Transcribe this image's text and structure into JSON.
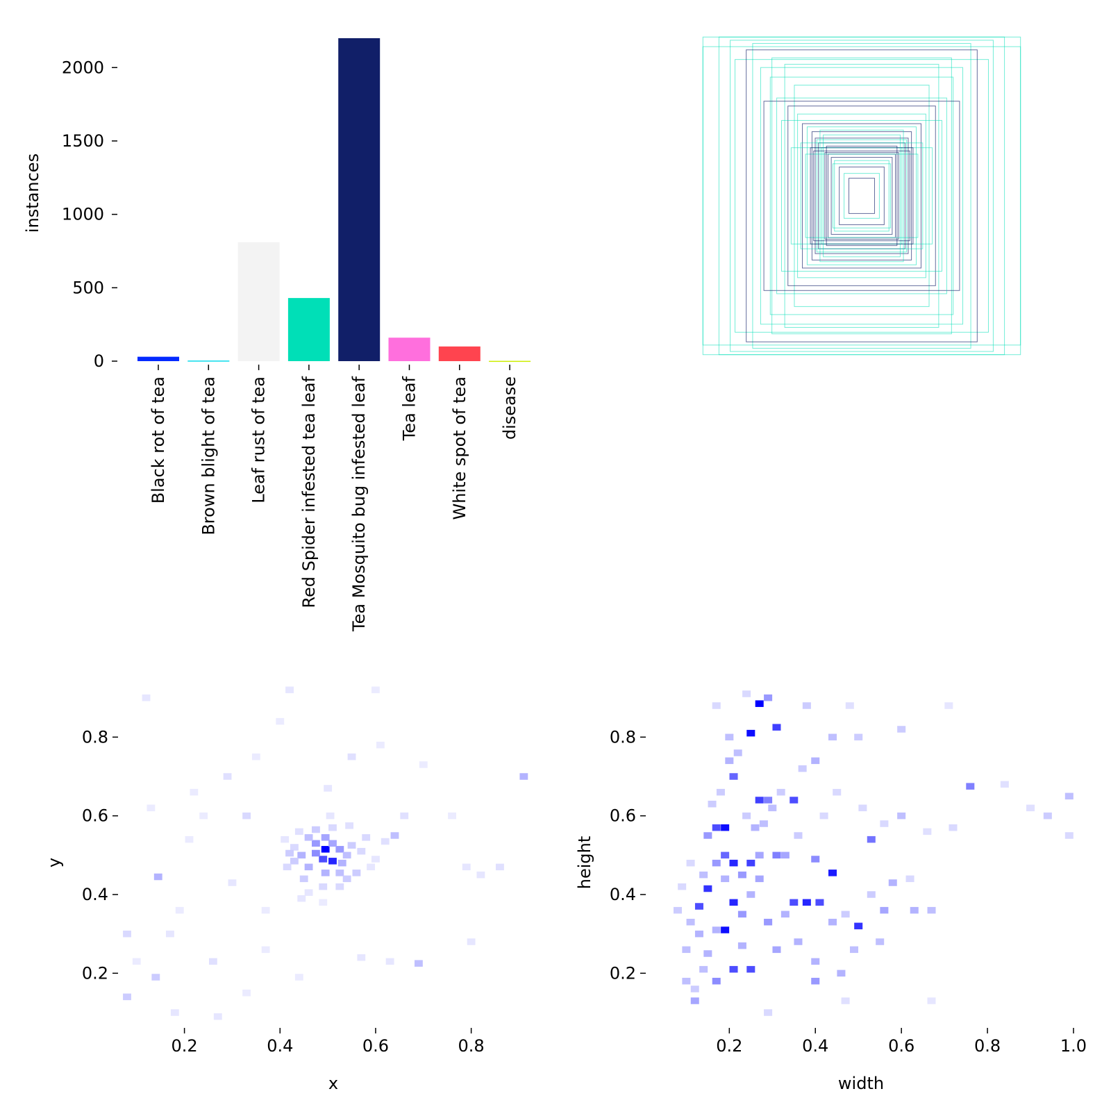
{
  "chart_data": [
    {
      "id": "class-instances",
      "type": "bar",
      "title": "",
      "xlabel": "",
      "ylabel": "instances",
      "ylim": [
        0,
        2200
      ],
      "yticks": [
        0,
        500,
        1000,
        1500,
        2000
      ],
      "categories": [
        "Black rot of tea",
        "Brown blight of tea",
        "Leaf rust of tea",
        "Red Spider infested tea leaf",
        "Tea Mosquito bug infested leaf",
        "Tea leaf",
        "White spot of tea",
        "disease"
      ],
      "values": [
        30,
        4,
        810,
        430,
        2200,
        160,
        100,
        2
      ],
      "colors": [
        "#042aff",
        "#0bdbeb",
        "#f3f3f3",
        "#00dfb7",
        "#111f68",
        "#ff6fdd",
        "#ff444f",
        "#cced00"
      ]
    },
    {
      "id": "box-overlay",
      "type": "box-overlay",
      "title": "",
      "xlim": [
        0,
        1
      ],
      "ylim": [
        0,
        1
      ],
      "boxes": [
        {
          "w": 0.99,
          "h": 0.99,
          "c": 1
        },
        {
          "w": 0.89,
          "h": 0.99,
          "c": 1
        },
        {
          "w": 0.99,
          "h": 0.93,
          "c": 1
        },
        {
          "w": 0.82,
          "h": 0.97,
          "c": 1
        },
        {
          "w": 0.68,
          "h": 0.95,
          "c": 1
        },
        {
          "w": 0.79,
          "h": 0.85,
          "c": 1
        },
        {
          "w": 0.72,
          "h": 0.91,
          "c": 0
        },
        {
          "w": 0.56,
          "h": 0.86,
          "c": 1
        },
        {
          "w": 0.63,
          "h": 0.8,
          "c": 1
        },
        {
          "w": 0.48,
          "h": 0.82,
          "c": 1
        },
        {
          "w": 0.42,
          "h": 0.69,
          "c": 1
        },
        {
          "w": 0.57,
          "h": 0.74,
          "c": 1
        },
        {
          "w": 0.61,
          "h": 0.59,
          "c": 0
        },
        {
          "w": 0.53,
          "h": 0.61,
          "c": 1
        },
        {
          "w": 0.46,
          "h": 0.56,
          "c": 0
        },
        {
          "w": 0.4,
          "h": 0.51,
          "c": 1
        },
        {
          "w": 0.37,
          "h": 0.45,
          "c": 0
        },
        {
          "w": 0.34,
          "h": 0.43,
          "c": 1
        },
        {
          "w": 0.31,
          "h": 0.4,
          "c": 0
        },
        {
          "w": 0.44,
          "h": 0.3,
          "c": 1
        },
        {
          "w": 0.29,
          "h": 0.36,
          "c": 0
        },
        {
          "w": 0.27,
          "h": 0.33,
          "c": 0
        },
        {
          "w": 0.25,
          "h": 0.3,
          "c": 1
        },
        {
          "w": 0.23,
          "h": 0.27,
          "c": 0
        },
        {
          "w": 0.21,
          "h": 0.26,
          "c": 0
        },
        {
          "w": 0.19,
          "h": 0.24,
          "c": 0
        },
        {
          "w": 0.17,
          "h": 0.22,
          "c": 1
        },
        {
          "w": 0.14,
          "h": 0.18,
          "c": 0
        },
        {
          "w": 0.11,
          "h": 0.14,
          "c": 1
        },
        {
          "w": 0.08,
          "h": 0.11,
          "c": 0
        },
        {
          "w": 0.35,
          "h": 0.26,
          "c": 1
        },
        {
          "w": 0.28,
          "h": 0.35,
          "c": 1
        },
        {
          "w": 0.32,
          "h": 0.3,
          "c": 0
        },
        {
          "w": 0.24,
          "h": 0.38,
          "c": 1
        },
        {
          "w": 0.38,
          "h": 0.33,
          "c": 1
        },
        {
          "w": 0.3,
          "h": 0.28,
          "c": 0
        },
        {
          "w": 0.22,
          "h": 0.31,
          "c": 0
        },
        {
          "w": 0.26,
          "h": 0.41,
          "c": 1
        },
        {
          "w": 0.5,
          "h": 0.47,
          "c": 1
        },
        {
          "w": 0.18,
          "h": 0.2,
          "c": 1
        }
      ]
    },
    {
      "id": "xy-distribution",
      "type": "heatmap",
      "xlabel": "x",
      "ylabel": "y",
      "xlim": [
        0.08,
        0.94
      ],
      "ylim": [
        0.07,
        0.91
      ],
      "xticks": [
        0.2,
        0.4,
        0.6,
        0.8
      ],
      "yticks": [
        0.2,
        0.4,
        0.6,
        0.8
      ],
      "bins": 50,
      "cells": [
        [
          0.495,
          0.515,
          1.0
        ],
        [
          0.51,
          0.485,
          0.85
        ],
        [
          0.49,
          0.49,
          0.7
        ],
        [
          0.475,
          0.505,
          0.45
        ],
        [
          0.525,
          0.515,
          0.4
        ],
        [
          0.475,
          0.53,
          0.4
        ],
        [
          0.51,
          0.53,
          0.35
        ],
        [
          0.46,
          0.47,
          0.3
        ],
        [
          0.53,
          0.48,
          0.3
        ],
        [
          0.495,
          0.545,
          0.35
        ],
        [
          0.495,
          0.455,
          0.3
        ],
        [
          0.54,
          0.5,
          0.25
        ],
        [
          0.445,
          0.5,
          0.3
        ],
        [
          0.46,
          0.545,
          0.25
        ],
        [
          0.525,
          0.455,
          0.25
        ],
        [
          0.55,
          0.525,
          0.2
        ],
        [
          0.45,
          0.44,
          0.2
        ],
        [
          0.43,
          0.485,
          0.2
        ],
        [
          0.475,
          0.565,
          0.2
        ],
        [
          0.51,
          0.57,
          0.15
        ],
        [
          0.56,
          0.455,
          0.2
        ],
        [
          0.54,
          0.44,
          0.2
        ],
        [
          0.43,
          0.52,
          0.15
        ],
        [
          0.42,
          0.505,
          0.2
        ],
        [
          0.415,
          0.47,
          0.15
        ],
        [
          0.57,
          0.51,
          0.15
        ],
        [
          0.58,
          0.545,
          0.15
        ],
        [
          0.525,
          0.42,
          0.15
        ],
        [
          0.49,
          0.42,
          0.15
        ],
        [
          0.46,
          0.405,
          0.1
        ],
        [
          0.545,
          0.575,
          0.12
        ],
        [
          0.505,
          0.6,
          0.1
        ],
        [
          0.44,
          0.56,
          0.12
        ],
        [
          0.41,
          0.54,
          0.1
        ],
        [
          0.6,
          0.49,
          0.1
        ],
        [
          0.62,
          0.535,
          0.12
        ],
        [
          0.64,
          0.55,
          0.25
        ],
        [
          0.59,
          0.47,
          0.1
        ],
        [
          0.445,
          0.39,
          0.1
        ],
        [
          0.49,
          0.38,
          0.08
        ],
        [
          0.145,
          0.445,
          0.3
        ],
        [
          0.91,
          0.7,
          0.3
        ],
        [
          0.69,
          0.225,
          0.25
        ],
        [
          0.14,
          0.19,
          0.2
        ],
        [
          0.08,
          0.14,
          0.2
        ],
        [
          0.08,
          0.3,
          0.15
        ],
        [
          0.26,
          0.23,
          0.12
        ],
        [
          0.33,
          0.6,
          0.15
        ],
        [
          0.29,
          0.7,
          0.12
        ],
        [
          0.12,
          0.9,
          0.1
        ],
        [
          0.42,
          0.92,
          0.1
        ],
        [
          0.6,
          0.92,
          0.08
        ],
        [
          0.55,
          0.75,
          0.12
        ],
        [
          0.66,
          0.6,
          0.12
        ],
        [
          0.79,
          0.47,
          0.1
        ],
        [
          0.86,
          0.47,
          0.12
        ],
        [
          0.82,
          0.45,
          0.1
        ],
        [
          0.63,
          0.23,
          0.1
        ],
        [
          0.8,
          0.28,
          0.1
        ],
        [
          0.57,
          0.24,
          0.1
        ],
        [
          0.3,
          0.43,
          0.1
        ],
        [
          0.21,
          0.54,
          0.08
        ],
        [
          0.37,
          0.36,
          0.08
        ],
        [
          0.44,
          0.19,
          0.08
        ],
        [
          0.17,
          0.3,
          0.1
        ],
        [
          0.24,
          0.6,
          0.08
        ],
        [
          0.33,
          0.15,
          0.08
        ],
        [
          0.7,
          0.73,
          0.08
        ],
        [
          0.4,
          0.84,
          0.08
        ],
        [
          0.76,
          0.6,
          0.08
        ],
        [
          0.18,
          0.1,
          0.1
        ],
        [
          0.27,
          0.09,
          0.1
        ],
        [
          0.1,
          0.23,
          0.08
        ],
        [
          0.22,
          0.66,
          0.08
        ],
        [
          0.35,
          0.75,
          0.08
        ],
        [
          0.13,
          0.62,
          0.08
        ],
        [
          0.19,
          0.36,
          0.08
        ],
        [
          0.61,
          0.78,
          0.08
        ],
        [
          0.5,
          0.67,
          0.1
        ],
        [
          0.37,
          0.26,
          0.08
        ]
      ]
    },
    {
      "id": "wh-distribution",
      "type": "heatmap",
      "xlabel": "width",
      "ylabel": "height",
      "xlim": [
        0.03,
        1.0
      ],
      "ylim": [
        0.07,
        0.91
      ],
      "xticks": [
        0.2,
        0.4,
        0.6,
        0.8,
        1.0
      ],
      "xtick_labels": [
        "0.2",
        "0.4",
        "0.6",
        "0.8",
        "1.0"
      ],
      "yticks": [
        0.2,
        0.4,
        0.6,
        0.8
      ],
      "bins": 50,
      "cells": [
        [
          0.27,
          0.885,
          1.0
        ],
        [
          0.25,
          0.81,
          0.95
        ],
        [
          0.31,
          0.825,
          0.75
        ],
        [
          0.29,
          0.9,
          0.4
        ],
        [
          0.19,
          0.57,
          0.95
        ],
        [
          0.21,
          0.48,
          0.85
        ],
        [
          0.17,
          0.57,
          0.7
        ],
        [
          0.19,
          0.31,
          0.95
        ],
        [
          0.21,
          0.38,
          0.85
        ],
        [
          0.15,
          0.415,
          0.8
        ],
        [
          0.27,
          0.64,
          0.75
        ],
        [
          0.35,
          0.64,
          0.7
        ],
        [
          0.44,
          0.455,
          0.9
        ],
        [
          0.38,
          0.38,
          0.85
        ],
        [
          0.35,
          0.38,
          0.7
        ],
        [
          0.41,
          0.38,
          0.7
        ],
        [
          0.25,
          0.48,
          0.75
        ],
        [
          0.21,
          0.21,
          0.7
        ],
        [
          0.25,
          0.21,
          0.7
        ],
        [
          0.5,
          0.32,
          0.8
        ],
        [
          0.13,
          0.37,
          0.7
        ],
        [
          0.19,
          0.5,
          0.6
        ],
        [
          0.29,
          0.64,
          0.5
        ],
        [
          0.21,
          0.7,
          0.6
        ],
        [
          0.53,
          0.54,
          0.55
        ],
        [
          0.76,
          0.675,
          0.5
        ],
        [
          0.4,
          0.49,
          0.45
        ],
        [
          0.31,
          0.5,
          0.5
        ],
        [
          0.23,
          0.45,
          0.4
        ],
        [
          0.17,
          0.48,
          0.4
        ],
        [
          0.17,
          0.18,
          0.45
        ],
        [
          0.15,
          0.55,
          0.4
        ],
        [
          0.27,
          0.44,
          0.35
        ],
        [
          0.29,
          0.33,
          0.4
        ],
        [
          0.23,
          0.35,
          0.4
        ],
        [
          0.31,
          0.26,
          0.35
        ],
        [
          0.4,
          0.18,
          0.4
        ],
        [
          0.33,
          0.5,
          0.35
        ],
        [
          0.27,
          0.5,
          0.35
        ],
        [
          0.25,
          0.4,
          0.3
        ],
        [
          0.15,
          0.25,
          0.3
        ],
        [
          0.17,
          0.31,
          0.3
        ],
        [
          0.19,
          0.44,
          0.3
        ],
        [
          0.13,
          0.3,
          0.3
        ],
        [
          0.23,
          0.27,
          0.3
        ],
        [
          0.33,
          0.35,
          0.3
        ],
        [
          0.44,
          0.33,
          0.3
        ],
        [
          0.36,
          0.28,
          0.3
        ],
        [
          0.4,
          0.23,
          0.3
        ],
        [
          0.46,
          0.2,
          0.3
        ],
        [
          0.56,
          0.36,
          0.35
        ],
        [
          0.58,
          0.43,
          0.3
        ],
        [
          0.6,
          0.6,
          0.25
        ],
        [
          0.63,
          0.36,
          0.3
        ],
        [
          0.67,
          0.36,
          0.25
        ],
        [
          0.55,
          0.28,
          0.25
        ],
        [
          0.53,
          0.4,
          0.2
        ],
        [
          0.49,
          0.26,
          0.25
        ],
        [
          0.47,
          0.35,
          0.2
        ],
        [
          0.12,
          0.13,
          0.35
        ],
        [
          0.1,
          0.26,
          0.25
        ],
        [
          0.1,
          0.18,
          0.25
        ],
        [
          0.11,
          0.33,
          0.25
        ],
        [
          0.14,
          0.21,
          0.25
        ],
        [
          0.14,
          0.45,
          0.25
        ],
        [
          0.16,
          0.63,
          0.2
        ],
        [
          0.18,
          0.66,
          0.2
        ],
        [
          0.2,
          0.74,
          0.3
        ],
        [
          0.22,
          0.76,
          0.25
        ],
        [
          0.2,
          0.8,
          0.25
        ],
        [
          0.24,
          0.6,
          0.2
        ],
        [
          0.26,
          0.57,
          0.3
        ],
        [
          0.28,
          0.58,
          0.25
        ],
        [
          0.3,
          0.62,
          0.25
        ],
        [
          0.32,
          0.66,
          0.2
        ],
        [
          0.37,
          0.72,
          0.2
        ],
        [
          0.4,
          0.74,
          0.3
        ],
        [
          0.44,
          0.8,
          0.25
        ],
        [
          0.5,
          0.8,
          0.2
        ],
        [
          0.6,
          0.82,
          0.2
        ],
        [
          0.38,
          0.88,
          0.2
        ],
        [
          0.24,
          0.91,
          0.15
        ],
        [
          0.17,
          0.88,
          0.15
        ],
        [
          0.48,
          0.88,
          0.12
        ],
        [
          0.71,
          0.88,
          0.1
        ],
        [
          0.94,
          0.6,
          0.2
        ],
        [
          0.99,
          0.65,
          0.25
        ],
        [
          0.99,
          0.55,
          0.15
        ],
        [
          0.72,
          0.57,
          0.15
        ],
        [
          0.66,
          0.56,
          0.12
        ],
        [
          0.84,
          0.68,
          0.12
        ],
        [
          0.9,
          0.62,
          0.12
        ],
        [
          0.67,
          0.13,
          0.1
        ],
        [
          0.47,
          0.13,
          0.12
        ],
        [
          0.29,
          0.1,
          0.15
        ],
        [
          0.12,
          0.16,
          0.2
        ],
        [
          0.08,
          0.36,
          0.2
        ],
        [
          0.09,
          0.42,
          0.15
        ],
        [
          0.11,
          0.48,
          0.15
        ],
        [
          0.36,
          0.55,
          0.2
        ],
        [
          0.42,
          0.6,
          0.15
        ],
        [
          0.45,
          0.66,
          0.15
        ],
        [
          0.51,
          0.62,
          0.15
        ],
        [
          0.56,
          0.58,
          0.15
        ],
        [
          0.62,
          0.44,
          0.15
        ]
      ]
    }
  ]
}
